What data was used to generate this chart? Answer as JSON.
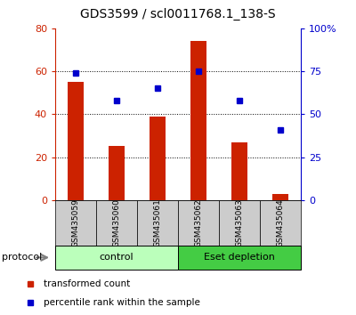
{
  "title": "GDS3599 / scl0011768.1_138-S",
  "samples": [
    "GSM435059",
    "GSM435060",
    "GSM435061",
    "GSM435062",
    "GSM435063",
    "GSM435064"
  ],
  "bar_values": [
    55,
    25,
    39,
    74,
    27,
    3
  ],
  "percentile_values": [
    74,
    58,
    65,
    75,
    58,
    41
  ],
  "bar_color": "#cc2200",
  "dot_color": "#0000cc",
  "ylim_left": [
    0,
    80
  ],
  "ylim_right": [
    0,
    100
  ],
  "yticks_left": [
    0,
    20,
    40,
    60,
    80
  ],
  "yticks_right": [
    0,
    25,
    50,
    75,
    100
  ],
  "ytick_labels_right": [
    "0",
    "25",
    "50",
    "75",
    "100%"
  ],
  "groups": [
    {
      "label": "control",
      "color": "#bbffbb"
    },
    {
      "label": "Eset depletion",
      "color": "#44cc44"
    }
  ],
  "protocol_label": "protocol",
  "legend_bar_label": "transformed count",
  "legend_dot_label": "percentile rank within the sample",
  "bar_width": 0.4,
  "xlabel_area_color": "#cccccc",
  "title_fontsize": 10,
  "axis_label_color_left": "#cc2200",
  "axis_label_color_right": "#0000cc",
  "fig_width": 4.0,
  "fig_height": 3.54,
  "dpi": 100
}
